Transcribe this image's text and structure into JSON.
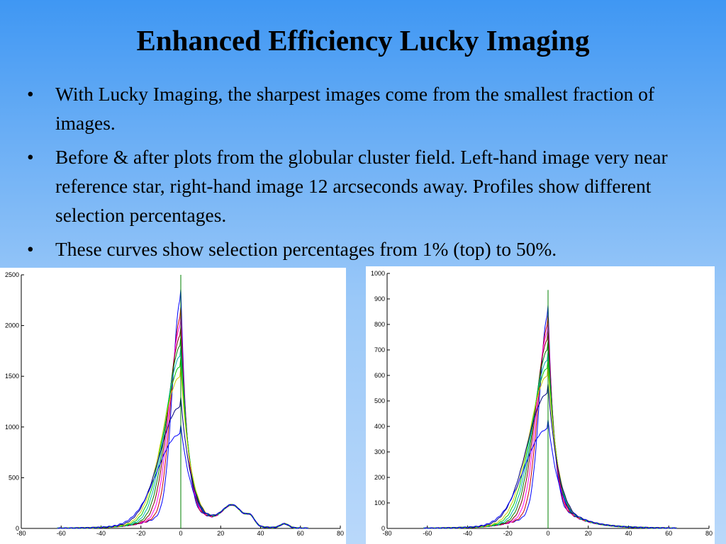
{
  "slide": {
    "title": "Enhanced Efficiency Lucky Imaging",
    "bullets": [
      "With Lucky Imaging, the sharpest images come from the smallest fraction of images.",
      "Before & after plots from the globular cluster field.  Left-hand image very near reference star, right-hand image 12 arcseconds away.  Profiles show different selection percentages.",
      "These curves show selection percentages from 1% (top) to 50%."
    ],
    "bullet_glyph": "•"
  },
  "chart_data": [
    {
      "type": "line",
      "xlim": [
        -80,
        80
      ],
      "ylim": [
        0,
        2500
      ],
      "xticks": [
        -80,
        -60,
        -40,
        -20,
        0,
        20,
        40,
        60,
        80
      ],
      "yticks": [
        0,
        500,
        1000,
        1500,
        2000,
        2500
      ],
      "vertical_marker": {
        "x": 0,
        "top": 2500,
        "color": "#008000"
      },
      "series": [
        {
          "color": "#0000ff",
          "peak": 2270,
          "flatten": 0.0
        },
        {
          "color": "#cc0000",
          "peak": 2090,
          "flatten": 0.1
        },
        {
          "color": "#ff00ff",
          "peak": 2000,
          "flatten": 0.2
        },
        {
          "color": "#800000",
          "peak": 1900,
          "flatten": 0.3
        },
        {
          "color": "#008000",
          "peak": 1800,
          "flatten": 0.4
        },
        {
          "color": "#00b3b3",
          "peak": 1700,
          "flatten": 0.5
        },
        {
          "color": "#00cc00",
          "peak": 1600,
          "flatten": 0.6
        },
        {
          "color": "#cccc00",
          "peak": 1500,
          "flatten": 0.7
        },
        {
          "color": "#000080",
          "peak": 1200,
          "flatten": 0.85
        },
        {
          "color": "#0000ff",
          "peak": 930,
          "flatten": 1.0
        }
      ],
      "shoulder": {
        "x": 26,
        "y": 190
      },
      "bumps": [
        {
          "x": 35,
          "y": 80
        },
        {
          "x": 52,
          "y": 40
        }
      ],
      "x_range": [
        -62,
        64
      ]
    },
    {
      "type": "line",
      "xlim": [
        -80,
        80
      ],
      "ylim": [
        0,
        1000
      ],
      "xticks": [
        -80,
        -60,
        -40,
        -20,
        0,
        20,
        40,
        60,
        80
      ],
      "yticks": [
        0,
        100,
        200,
        300,
        400,
        500,
        600,
        700,
        800,
        900,
        1000
      ],
      "vertical_marker": {
        "x": 0,
        "top": 935,
        "color": "#008000"
      },
      "series": [
        {
          "color": "#0000ff",
          "peak": 840,
          "flatten": 0.0
        },
        {
          "color": "#cc0000",
          "peak": 800,
          "flatten": 0.1
        },
        {
          "color": "#ff00ff",
          "peak": 770,
          "flatten": 0.2
        },
        {
          "color": "#800000",
          "peak": 740,
          "flatten": 0.3
        },
        {
          "color": "#008000",
          "peak": 700,
          "flatten": 0.4
        },
        {
          "color": "#00b3b3",
          "peak": 660,
          "flatten": 0.5
        },
        {
          "color": "#00cc00",
          "peak": 630,
          "flatten": 0.6
        },
        {
          "color": "#cccc00",
          "peak": 600,
          "flatten": 0.7
        },
        {
          "color": "#000080",
          "peak": 530,
          "flatten": 0.85
        },
        {
          "color": "#0000ff",
          "peak": 390,
          "flatten": 1.0
        }
      ],
      "shoulder": null,
      "bumps": [],
      "x_range": [
        -62,
        64
      ]
    }
  ]
}
